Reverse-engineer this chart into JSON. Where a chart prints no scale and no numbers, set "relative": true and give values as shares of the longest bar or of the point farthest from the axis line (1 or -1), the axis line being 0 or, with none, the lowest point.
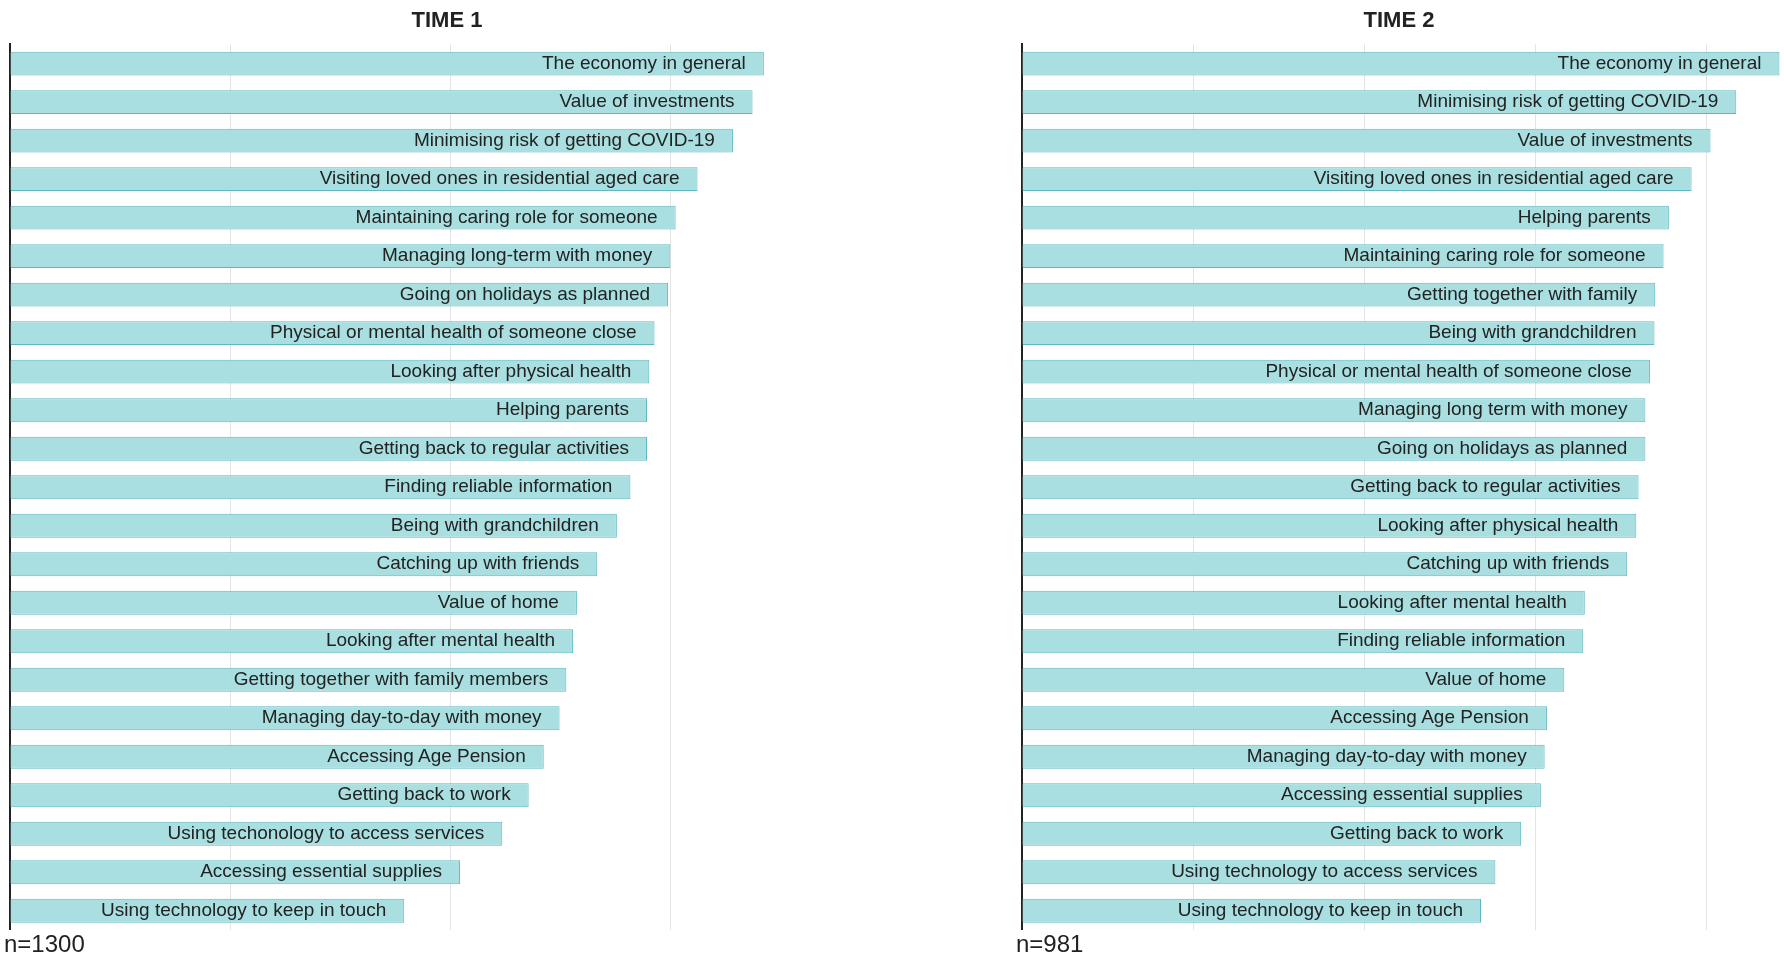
{
  "chart_data": [
    {
      "type": "bar",
      "orientation": "horizontal",
      "relative": true,
      "title": "TIME 1",
      "grid": "x",
      "legend": false,
      "annotations": [
        "n=1300"
      ],
      "categories": [
        "The economy in general",
        "Value of investments",
        "Minimising risk of getting COVID-19",
        "Visiting loved ones in residential aged care",
        "Maintaining caring role for someone",
        "Managing long-term with money",
        "Going on holidays as planned",
        "Physical or mental health of someone close",
        "Looking after physical health",
        "Helping parents",
        "Getting back to regular activities",
        "Finding reliable information",
        "Being with grandchildren",
        "Catching up with friends",
        "Value of home",
        "Looking after mental health",
        "Getting together with family members",
        "Managing day-to-day with money",
        "Accessing Age Pension",
        "Getting back to work",
        "Using techonology to access services",
        "Accessing essential supplies",
        "Using technology to keep in touch"
      ],
      "series": [
        {
          "color": "#a9dfe0",
          "values": [
            1,
            0.985,
            0.959,
            0.912,
            0.883,
            0.876,
            0.873,
            0.855,
            0.848,
            0.845,
            0.845,
            0.823,
            0.805,
            0.779,
            0.752,
            0.747,
            0.738,
            0.729,
            0.708,
            0.688,
            0.653,
            0.597,
            0.523
          ]
        }
      ]
    },
    {
      "type": "bar",
      "orientation": "horizontal",
      "relative": true,
      "title": "TIME 2",
      "grid": "x",
      "legend": false,
      "annotations": [
        "n=981"
      ],
      "categories": [
        "The economy in general",
        "Minimising risk of getting COVID-19",
        "Value of investments",
        "Visiting loved ones in residential aged care",
        "Helping parents",
        "Maintaining caring role for someone",
        "Getting together with family",
        "Being with grandchildren",
        "Physical or mental health of someone close",
        "Managing long term with money",
        "Going on holidays as planned",
        "Getting back to regular activities",
        "Looking after physical health",
        "Catching up with friends",
        "Looking after mental health",
        "Finding reliable information",
        "Value of home",
        "Accessing Age Pension",
        "Managing day-to-day with money",
        "Accessing essential supplies",
        "Getting back to work",
        "Using technology to access services",
        "Using technology to keep in touch"
      ],
      "series": [
        {
          "color": "#a9dfe0",
          "values": [
            1,
            0.943,
            0.909,
            0.884,
            0.854,
            0.847,
            0.836,
            0.835,
            0.829,
            0.823,
            0.823,
            0.814,
            0.811,
            0.799,
            0.743,
            0.741,
            0.716,
            0.693,
            0.69,
            0.685,
            0.659,
            0.625,
            0.606
          ]
        }
      ]
    }
  ]
}
